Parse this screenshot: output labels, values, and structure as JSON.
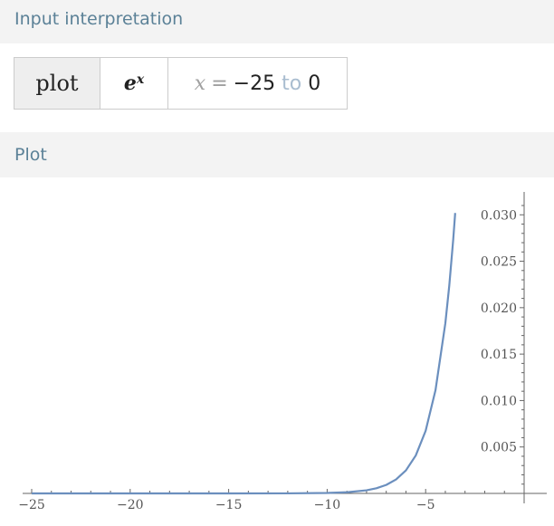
{
  "sections": {
    "input_title": "Input interpretation",
    "plot_title": "Plot"
  },
  "input": {
    "command": "plot",
    "function_base": "e",
    "function_exp": "x",
    "range_var": "x",
    "range_eq": "=",
    "range_from": "−25",
    "range_to_word": "to",
    "range_to": "0"
  },
  "chart_data": {
    "type": "line",
    "title": "",
    "xlabel": "",
    "ylabel": "",
    "xlim": [
      -25,
      0
    ],
    "ylim": [
      0,
      0.03
    ],
    "function": "e^x",
    "series": [
      {
        "x": [
          -25,
          -20,
          -15,
          -12,
          -10,
          -9,
          -8,
          -7.5,
          -7,
          -6.5,
          -6,
          -5.5,
          -5,
          -4.5,
          -4,
          -3.8,
          -3.6,
          -3.5
        ],
        "values": [
          0.0,
          0.0,
          3e-07,
          6.1e-06,
          4.54e-05,
          0.0001234,
          0.0003355,
          0.000553,
          0.000912,
          0.001503,
          0.002479,
          0.004087,
          0.006738,
          0.011109,
          0.018316,
          0.022371,
          0.027324,
          0.030197
        ]
      }
    ],
    "x_ticks": [
      {
        "value": -25,
        "label": "−25"
      },
      {
        "value": -20,
        "label": "−20"
      },
      {
        "value": -15,
        "label": "−15"
      },
      {
        "value": -10,
        "label": "−10"
      },
      {
        "value": -5,
        "label": "−5"
      }
    ],
    "y_ticks": [
      {
        "value": 0.005,
        "label": "0.005"
      },
      {
        "value": 0.01,
        "label": "0.010"
      },
      {
        "value": 0.015,
        "label": "0.015"
      },
      {
        "value": 0.02,
        "label": "0.020"
      },
      {
        "value": 0.025,
        "label": "0.025"
      },
      {
        "value": 0.03,
        "label": "0.030"
      }
    ],
    "line_color": "#6b8fbe",
    "axis_color": "#666666"
  }
}
